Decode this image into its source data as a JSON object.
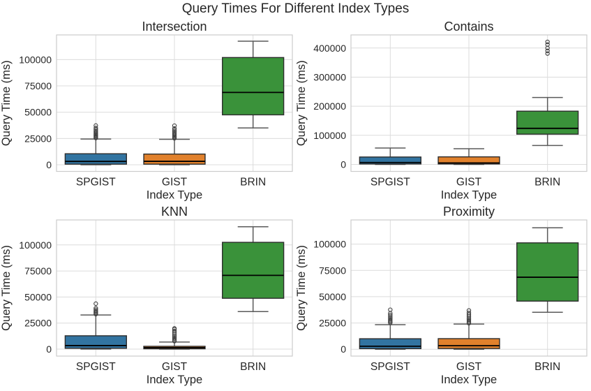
{
  "figure": {
    "title": "Query Times For Different Index Types"
  },
  "chart_data": {
    "type": "boxplot-grid",
    "grid": [
      2,
      2
    ],
    "title": "Query Times For Different Index Types",
    "xlabel": "Index Type",
    "ylabel": "Query Time (ms)",
    "categories": [
      "SPGIST",
      "GIST",
      "BRIN"
    ],
    "palette": {
      "SPGIST": "#3274a1",
      "GIST": "#e1812c",
      "BRIN": "#3a923a"
    },
    "grid_color": "#dcdcdc",
    "text_color": "#262626",
    "subplots": [
      {
        "title": "Intersection",
        "ylim": [
          -6300,
          123500
        ],
        "yticks": [
          0,
          25000,
          50000,
          75000,
          100000
        ],
        "boxes": [
          {
            "category": "SPGIST",
            "whislo": 0,
            "q1": 600,
            "med": 3200,
            "q3": 10500,
            "whishi": 24500,
            "outliers": [
              25500,
              26300,
              27200,
              28100,
              29000,
              30000,
              31100,
              32300,
              33600,
              35000,
              37300
            ]
          },
          {
            "category": "GIST",
            "whislo": 0,
            "q1": 600,
            "med": 3300,
            "q3": 10200,
            "whishi": 24200,
            "outliers": [
              25200,
              26100,
              27000,
              28000,
              29100,
              30300,
              31600,
              33000,
              34500,
              37200
            ]
          },
          {
            "category": "BRIN",
            "whislo": 35000,
            "q1": 47500,
            "med": 68800,
            "q3": 102000,
            "whishi": 117500,
            "outliers": []
          }
        ]
      },
      {
        "title": "Contains",
        "ylim": [
          -24000,
          445000
        ],
        "yticks": [
          0,
          100000,
          200000,
          300000,
          400000
        ],
        "boxes": [
          {
            "category": "SPGIST",
            "whislo": 0,
            "q1": 1500,
            "med": 6500,
            "q3": 25500,
            "whishi": 56500,
            "outliers": []
          },
          {
            "category": "GIST",
            "whislo": 0,
            "q1": 1500,
            "med": 5000,
            "q3": 26000,
            "whishi": 54000,
            "outliers": []
          },
          {
            "category": "BRIN",
            "whislo": 65000,
            "q1": 104000,
            "med": 124000,
            "q3": 183000,
            "whishi": 230000,
            "outliers": [
              421000,
              412000,
              400000,
              390000,
              381000
            ]
          }
        ]
      },
      {
        "title": "KNN",
        "ylim": [
          -6700,
          124000
        ],
        "yticks": [
          0,
          25000,
          50000,
          75000,
          100000
        ],
        "boxes": [
          {
            "category": "SPGIST",
            "whislo": 0,
            "q1": 800,
            "med": 3400,
            "q3": 12800,
            "whishi": 32800,
            "outliers": [
              33600,
              34500,
              35500,
              36600,
              37800,
              39200,
              43600
            ]
          },
          {
            "category": "GIST",
            "whislo": 0,
            "q1": 300,
            "med": 1400,
            "q3": 2700,
            "whishi": 6800,
            "outliers": [
              7700,
              8800,
              10000,
              11300,
              12700,
              14200,
              15800,
              17400,
              19000,
              19900
            ]
          },
          {
            "category": "BRIN",
            "whislo": 36000,
            "q1": 48800,
            "med": 70800,
            "q3": 102500,
            "whishi": 117500,
            "outliers": []
          }
        ]
      },
      {
        "title": "Proximity",
        "ylim": [
          -6500,
          123000
        ],
        "yticks": [
          0,
          25000,
          50000,
          75000,
          100000
        ],
        "boxes": [
          {
            "category": "SPGIST",
            "whislo": 0,
            "q1": 600,
            "med": 2900,
            "q3": 10000,
            "whishi": 23400,
            "outliers": [
              25100,
              26100,
              27200,
              28400,
              29700,
              31100,
              32600,
              34200,
              37600
            ]
          },
          {
            "category": "GIST",
            "whislo": 0,
            "q1": 700,
            "med": 3400,
            "q3": 10100,
            "whishi": 24000,
            "outliers": [
              24800,
              25900,
              27100,
              28400,
              29800,
              31300,
              32900,
              34600,
              36900
            ]
          },
          {
            "category": "BRIN",
            "whislo": 35200,
            "q1": 45800,
            "med": 68500,
            "q3": 101200,
            "whishi": 115500,
            "outliers": []
          }
        ]
      }
    ]
  }
}
